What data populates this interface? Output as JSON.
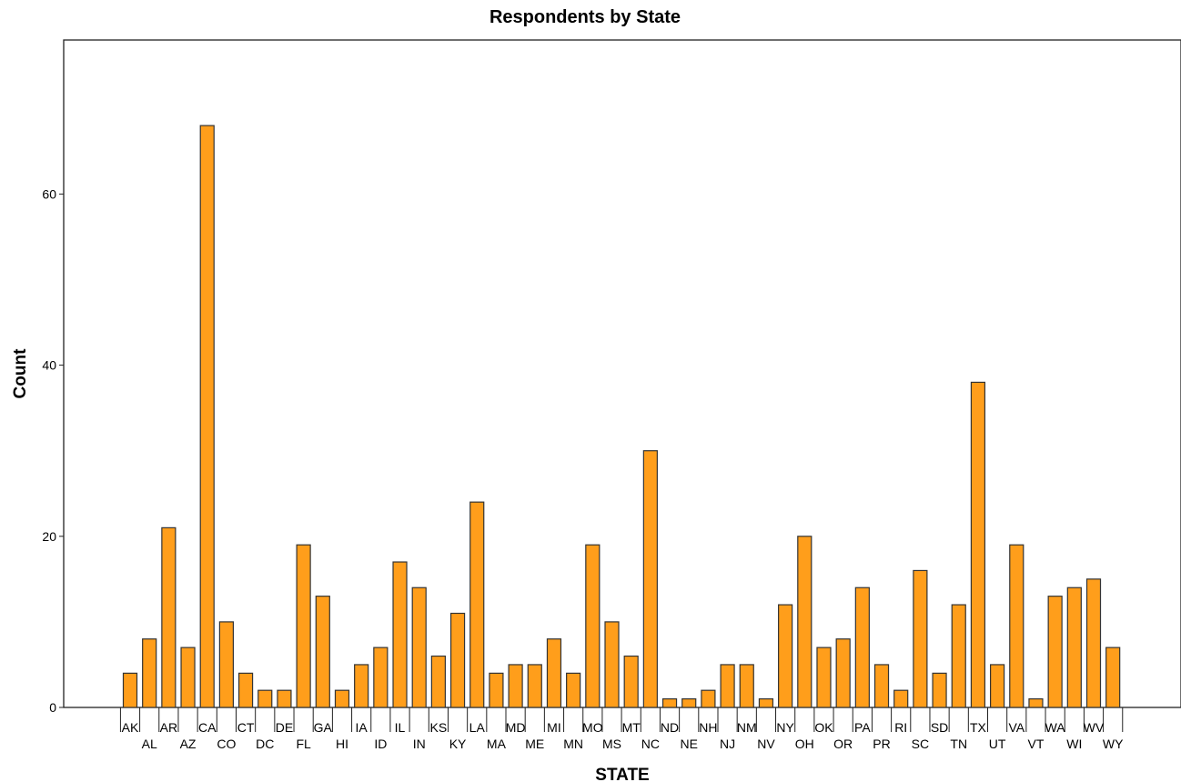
{
  "chart_data": {
    "type": "bar",
    "title": "Respondents by State",
    "xlabel": "STATE",
    "ylabel": "Count",
    "ylim": [
      0,
      78
    ],
    "yticks": [
      0,
      20,
      40,
      60
    ],
    "categories": [
      "AK",
      "AL",
      "AR",
      "AZ",
      "CA",
      "CO",
      "CT",
      "DC",
      "DE",
      "FL",
      "GA",
      "HI",
      "IA",
      "ID",
      "IL",
      "IN",
      "KS",
      "KY",
      "LA",
      "MA",
      "MD",
      "ME",
      "MI",
      "MN",
      "MO",
      "MS",
      "MT",
      "NC",
      "ND",
      "NE",
      "NH",
      "NJ",
      "NM",
      "NV",
      "NY",
      "OH",
      "OK",
      "OR",
      "PA",
      "PR",
      "RI",
      "SC",
      "SD",
      "TN",
      "TX",
      "UT",
      "VA",
      "VT",
      "WA",
      "WI",
      "WV",
      "WY"
    ],
    "values": [
      4,
      8,
      21,
      7,
      68,
      10,
      4,
      2,
      2,
      19,
      13,
      2,
      5,
      7,
      17,
      14,
      6,
      11,
      24,
      4,
      5,
      5,
      8,
      4,
      19,
      10,
      6,
      30,
      1,
      1,
      2,
      5,
      5,
      1,
      12,
      20,
      7,
      8,
      14,
      5,
      2,
      16,
      4,
      12,
      38,
      5,
      19,
      1,
      13,
      14,
      15,
      7
    ],
    "grid": false,
    "legend": "none",
    "colors": {
      "bar_fill": "#FF9E1B",
      "bar_stroke": "#333333",
      "axis": "#222222"
    }
  }
}
